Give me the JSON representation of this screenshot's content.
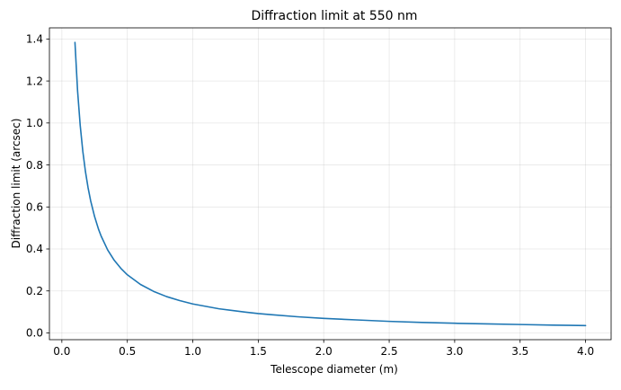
{
  "chart_data": {
    "type": "line",
    "title": "Diffraction limit at 550 nm",
    "xlabel": "Telescope diameter (m)",
    "ylabel": "Diffraction limit (arcsec)",
    "xlim": [
      -0.095,
      4.195
    ],
    "ylim": [
      -0.0322,
      1.453
    ],
    "xticks": [
      0.0,
      0.5,
      1.0,
      1.5,
      2.0,
      2.5,
      3.0,
      3.5,
      4.0
    ],
    "xtick_labels": [
      "0.0",
      "0.5",
      "1.0",
      "1.5",
      "2.0",
      "2.5",
      "3.0",
      "3.5",
      "4.0"
    ],
    "yticks": [
      0.0,
      0.2,
      0.4,
      0.6,
      0.8,
      1.0,
      1.2,
      1.4
    ],
    "ytick_labels": [
      "0.0",
      "0.2",
      "0.4",
      "0.6",
      "0.8",
      "1.0",
      "1.2",
      "1.4"
    ],
    "grid": true,
    "series": [
      {
        "color": "#1f77b4",
        "x": [
          0.1,
          0.12,
          0.14,
          0.16,
          0.18,
          0.2,
          0.22,
          0.25,
          0.28,
          0.3,
          0.35,
          0.4,
          0.45,
          0.5,
          0.6,
          0.7,
          0.8,
          0.9,
          1.0,
          1.2,
          1.4,
          1.5,
          1.6,
          1.8,
          2.0,
          2.25,
          2.5,
          2.75,
          3.0,
          3.25,
          3.5,
          3.75,
          4.0
        ],
        "y": [
          1.384,
          1.153,
          0.989,
          0.865,
          0.769,
          0.692,
          0.629,
          0.554,
          0.494,
          0.461,
          0.395,
          0.346,
          0.308,
          0.277,
          0.231,
          0.198,
          0.173,
          0.154,
          0.138,
          0.115,
          0.099,
          0.092,
          0.087,
          0.077,
          0.069,
          0.062,
          0.055,
          0.05,
          0.046,
          0.043,
          0.04,
          0.037,
          0.035
        ]
      }
    ]
  }
}
